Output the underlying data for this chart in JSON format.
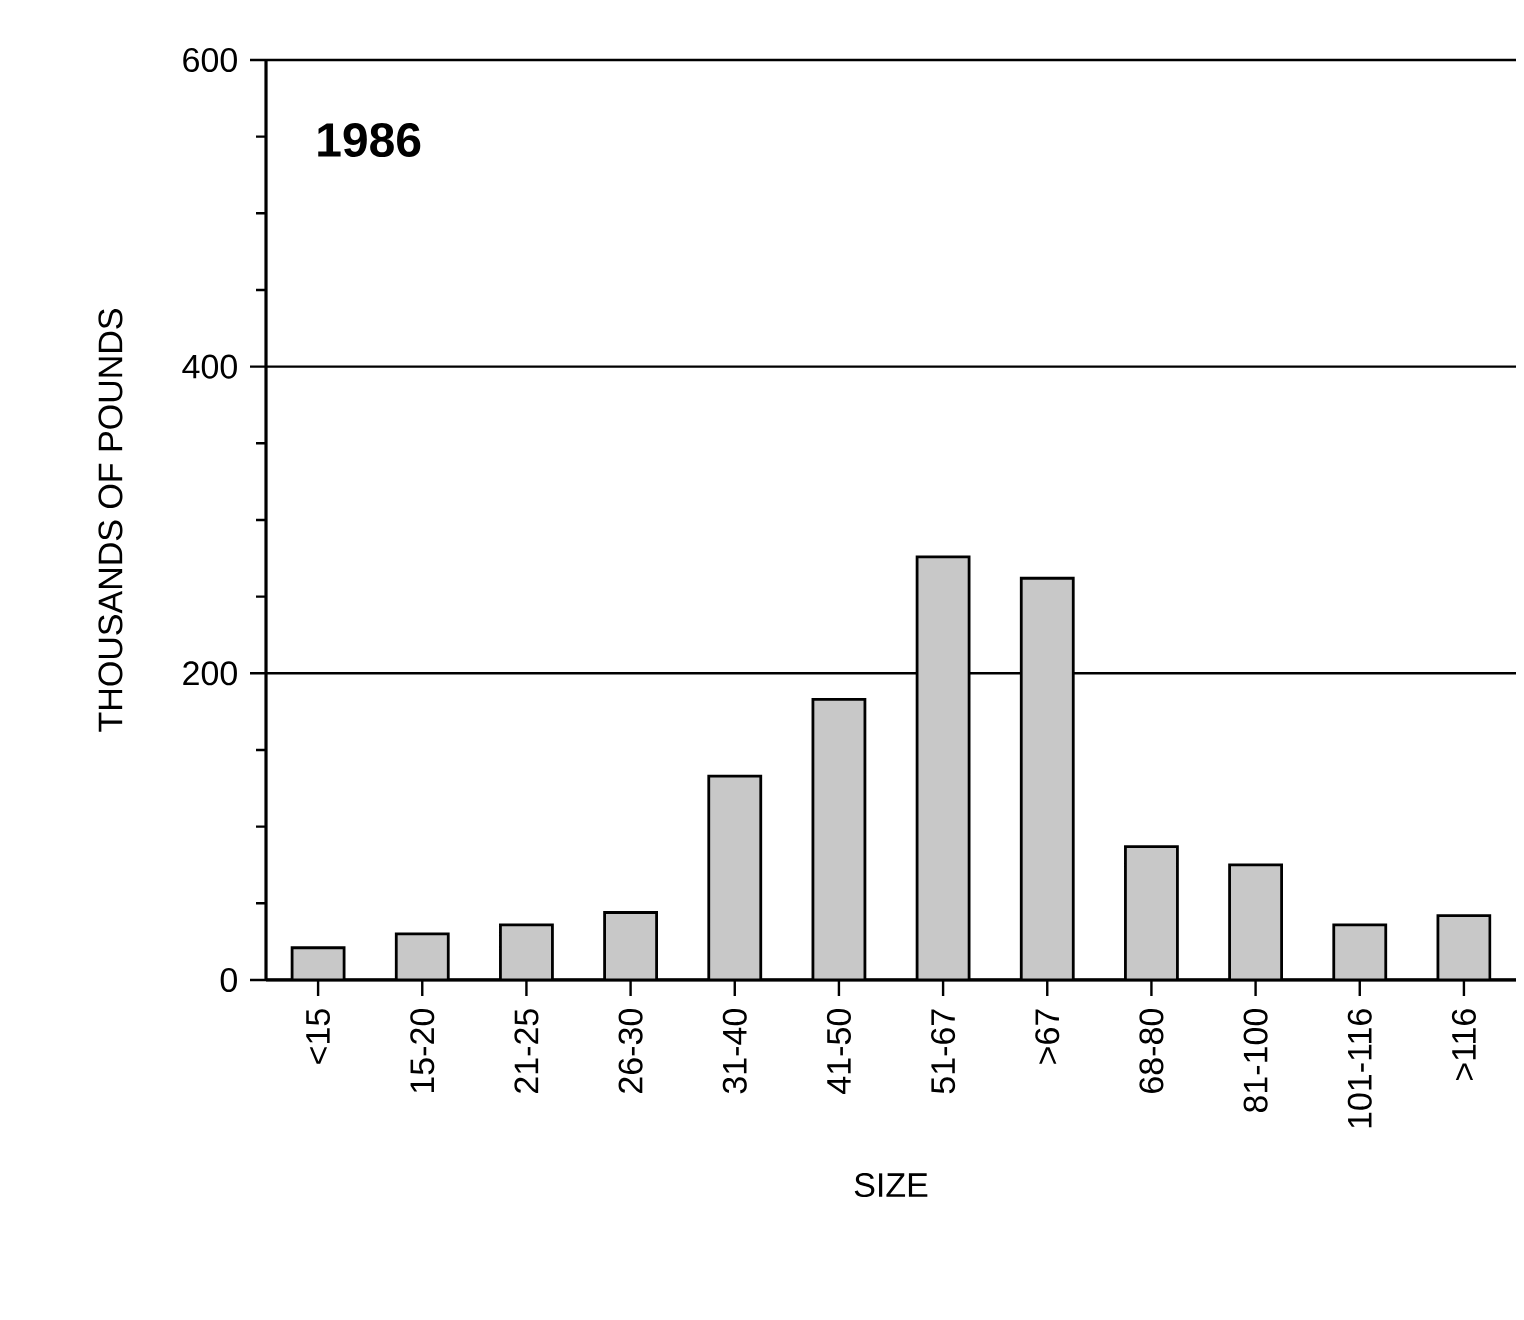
{
  "chart_data": {
    "type": "bar",
    "title": "1986",
    "xlabel": "SIZE",
    "ylabel": "THOUSANDS OF POUNDS",
    "categories": [
      "<15",
      "15-20",
      "21-25",
      "26-30",
      "31-40",
      "41-50",
      "51-67",
      ">67",
      "68-80",
      "81-100",
      "101-116",
      ">116"
    ],
    "values": [
      21,
      30,
      36,
      44,
      133,
      183,
      276,
      262,
      87,
      75,
      36,
      42
    ],
    "color": "#c8c8c8",
    "ylim": [
      0,
      600
    ],
    "yticks": [
      0,
      200,
      400,
      600
    ],
    "grid": "y"
  }
}
